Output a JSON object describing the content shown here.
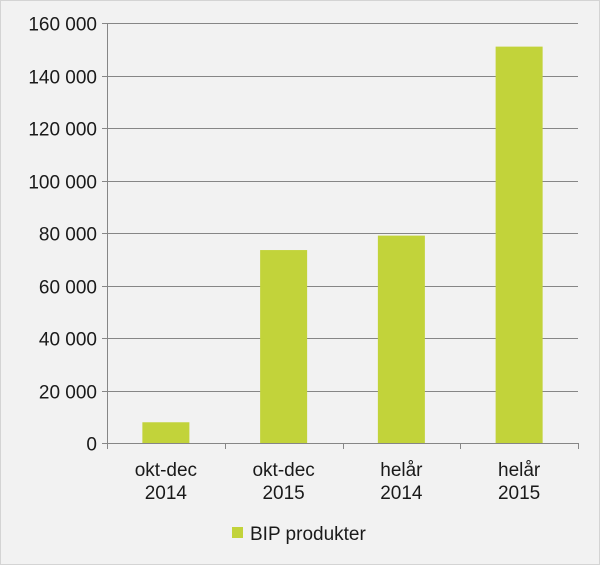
{
  "chart_data": {
    "type": "bar",
    "categories": [
      [
        "okt-dec",
        "2014"
      ],
      [
        "okt-dec",
        "2015"
      ],
      [
        "helår",
        "2014"
      ],
      [
        "helår",
        "2015"
      ]
    ],
    "series": [
      {
        "name": "BIP produkter",
        "values": [
          7900,
          73500,
          79000,
          151000
        ]
      }
    ],
    "ylim": [
      0,
      160000
    ],
    "yticks": [
      0,
      20000,
      40000,
      60000,
      80000,
      100000,
      120000,
      140000,
      160000
    ],
    "ytick_labels": [
      "0",
      "20 000",
      "40 000",
      "60 000",
      "80 000",
      "100 000",
      "120 000",
      "140 000",
      "160 000"
    ],
    "grid": true,
    "legend_position": "bottom",
    "colors": {
      "bar": "#c2d33a",
      "gridline": "#868686",
      "background": "#f2f2f2"
    }
  }
}
